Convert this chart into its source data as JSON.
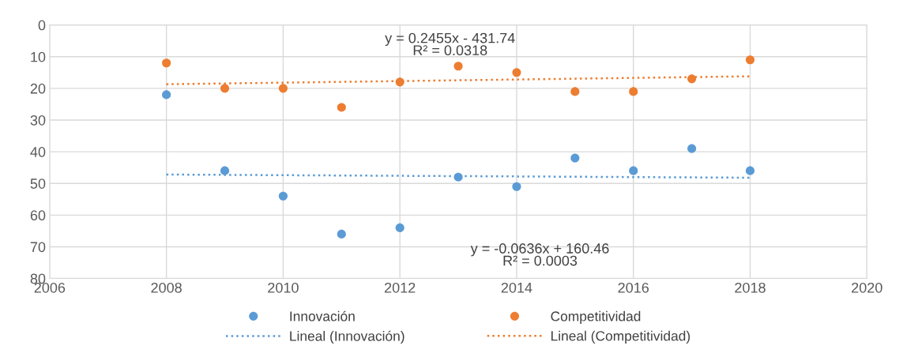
{
  "chart_data": {
    "type": "scatter",
    "series": [
      {
        "name": "Innovación",
        "color": "#5b9bd5",
        "x": [
          2008,
          2009,
          2010,
          2011,
          2012,
          2013,
          2014,
          2015,
          2016,
          2017,
          2018
        ],
        "values": [
          22,
          46,
          54,
          66,
          64,
          48,
          51,
          42,
          46,
          39,
          46
        ]
      },
      {
        "name": "Competitividad",
        "color": "#ed7d31",
        "x": [
          2008,
          2009,
          2010,
          2011,
          2012,
          2013,
          2014,
          2015,
          2016,
          2017,
          2018
        ],
        "values": [
          12,
          20,
          20,
          26,
          18,
          13,
          15,
          21,
          21,
          17,
          11
        ]
      },
      {
        "name": "Lineal (Innovación)",
        "type": "line",
        "line_style": "dotted",
        "marker": "none",
        "color": "#5b9bd5",
        "x": [
          2008,
          2018
        ],
        "values": [
          47.2,
          48.2
        ]
      },
      {
        "name": "Lineal (Competitividad)",
        "type": "line",
        "line_style": "dotted",
        "marker": "none",
        "color": "#ed7d31",
        "x": [
          2008,
          2018
        ],
        "values": [
          18.7,
          16.2
        ]
      }
    ],
    "marker": "circle",
    "xlim": [
      2006,
      2020
    ],
    "xticks": [
      2006,
      2008,
      2010,
      2012,
      2014,
      2016,
      2018,
      2020
    ],
    "ylim": [
      80,
      0
    ],
    "yticks": [
      0,
      10,
      20,
      30,
      40,
      50,
      60,
      70,
      80
    ],
    "grid": true,
    "legend": "bottom",
    "annotations": [
      "y = 0.2455x - 431.74\nR² = 0.0318",
      "y = -0.0636x + 160.46\nR² = 0.0003"
    ]
  }
}
